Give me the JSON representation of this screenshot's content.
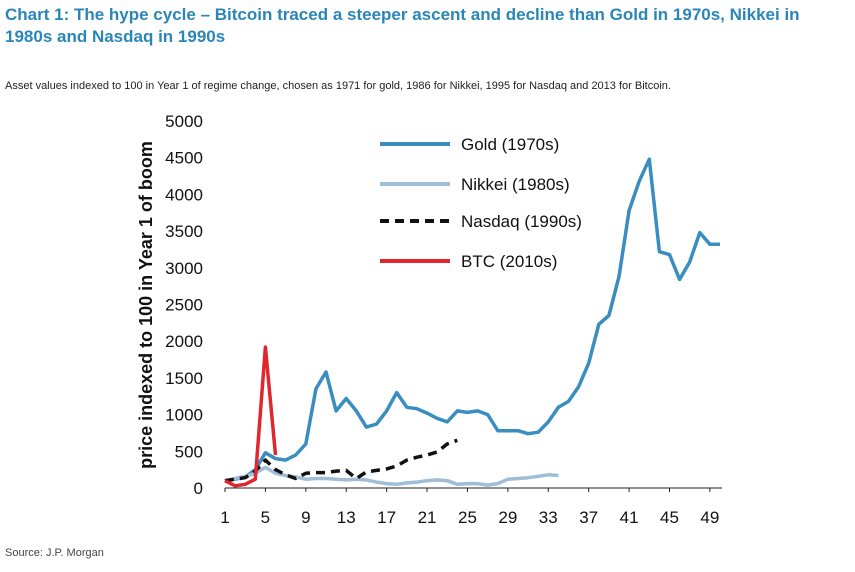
{
  "title": "Chart 1: The hype cycle – Bitcoin traced a steeper ascent and decline than Gold in 1970s, Nikkei in 1980s and Nasdaq in 1990s",
  "subtitle": "Asset values indexed to 100 in Year 1 of regime change, chosen as 1971 for gold, 1986 for Nikkei, 1995 for Nasdaq and 2013 for Bitcoin.",
  "source": "Source: J.P. Morgan",
  "chart_data": {
    "type": "line",
    "title": "",
    "xlabel": "",
    "ylabel": "price indexed to 100 in Year 1 of boom",
    "xlim": [
      1,
      50
    ],
    "ylim": [
      0,
      5000
    ],
    "x_ticks": [
      "1",
      "5",
      "9",
      "13",
      "17",
      "21",
      "25",
      "29",
      "33",
      "37",
      "41",
      "45",
      "49"
    ],
    "y_ticks": [
      "0",
      "500",
      "1000",
      "1500",
      "2000",
      "2500",
      "3000",
      "3500",
      "4000",
      "4500",
      "5000"
    ],
    "grid": false,
    "legend_position": "top-center",
    "series": [
      {
        "name": "Gold (1970s)",
        "color": "#3a8dbf",
        "dash": false,
        "x": [
          1,
          2,
          3,
          4,
          5,
          6,
          7,
          8,
          9,
          10,
          11,
          12,
          13,
          14,
          15,
          16,
          17,
          18,
          19,
          20,
          21,
          22,
          23,
          24,
          25,
          26,
          27,
          28,
          29,
          30,
          31,
          32,
          33,
          34,
          35,
          36,
          37,
          38,
          39,
          40,
          41,
          42,
          43,
          44,
          45,
          46,
          47,
          48,
          49,
          50
        ],
        "y": [
          100,
          120,
          150,
          250,
          480,
          400,
          380,
          450,
          600,
          1350,
          1580,
          1050,
          1220,
          1050,
          830,
          870,
          1050,
          1300,
          1100,
          1080,
          1020,
          950,
          900,
          1050,
          1030,
          1050,
          1000,
          780,
          780,
          780,
          740,
          760,
          900,
          1100,
          1180,
          1380,
          1700,
          2230,
          2350,
          2880,
          3780,
          4180,
          4480,
          3220,
          3180,
          2840,
          3080,
          3480,
          3320,
          3320
        ]
      },
      {
        "name": "Nikkei (1980s)",
        "color": "#9fbdd6",
        "dash": false,
        "x": [
          1,
          2,
          3,
          4,
          5,
          6,
          7,
          8,
          9,
          10,
          11,
          12,
          13,
          14,
          15,
          16,
          17,
          18,
          19,
          20,
          21,
          22,
          23,
          24,
          25,
          26,
          27,
          28,
          29,
          30,
          31,
          32,
          33,
          34
        ],
        "y": [
          100,
          130,
          160,
          200,
          280,
          200,
          170,
          150,
          120,
          130,
          130,
          120,
          110,
          120,
          110,
          80,
          60,
          50,
          70,
          80,
          100,
          110,
          100,
          50,
          60,
          60,
          40,
          60,
          120,
          130,
          140,
          160,
          180,
          170
        ]
      },
      {
        "name": "Nasdaq (1990s)",
        "color": "#111111",
        "dash": true,
        "x": [
          1,
          2,
          3,
          4,
          5,
          6,
          7,
          8,
          9,
          10,
          11,
          12,
          13,
          14,
          15,
          16,
          17,
          18,
          19,
          20,
          21,
          22,
          23,
          24
        ],
        "y": [
          100,
          120,
          140,
          230,
          380,
          250,
          180,
          130,
          200,
          210,
          210,
          230,
          240,
          130,
          220,
          240,
          260,
          300,
          380,
          420,
          450,
          490,
          600,
          650
        ]
      },
      {
        "name": "BTC (2010s)",
        "color": "#e0262e",
        "dash": false,
        "x": [
          1,
          2,
          3,
          4,
          5,
          6
        ],
        "y": [
          100,
          30,
          50,
          120,
          1920,
          450
        ]
      }
    ]
  }
}
